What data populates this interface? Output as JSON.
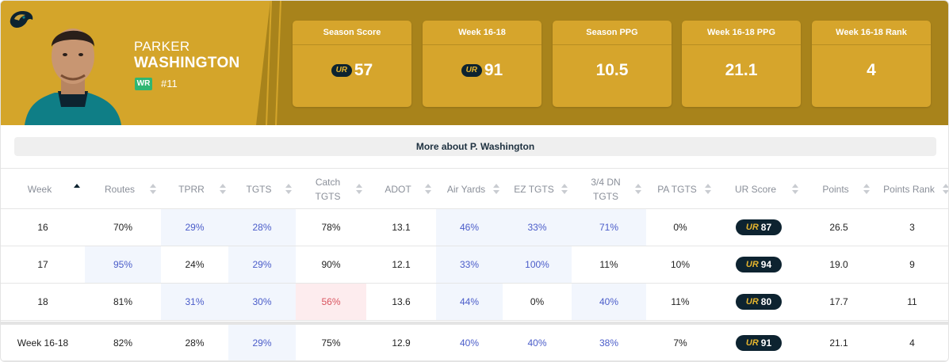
{
  "player": {
    "first_name": "PARKER",
    "last_name": "WASHINGTON",
    "position": "WR",
    "number": "#11"
  },
  "stats": [
    {
      "label": "Season Score",
      "value": "57",
      "has_logo": true
    },
    {
      "label": "Week 16-18",
      "value": "91",
      "has_logo": true
    },
    {
      "label": "Season PPG",
      "value": "10.5",
      "has_logo": false
    },
    {
      "label": "Week 16-18 PPG",
      "value": "21.1",
      "has_logo": false
    },
    {
      "label": "Week 16-18 Rank",
      "value": "4",
      "has_logo": false
    }
  ],
  "ur_logo_text": "UR",
  "more_about": "More about P. Washington",
  "table": {
    "headers": [
      "Week",
      "Routes",
      "TPRR",
      "TGTS",
      "Catch TGTS",
      "ADOT",
      "Air Yards",
      "EZ TGTS",
      "3/4 DN TGTS",
      "PA TGTS",
      "UR Score",
      "Points",
      "Points Rank"
    ],
    "rows": [
      {
        "cells": [
          "16",
          "70%",
          "29%",
          "28%",
          "78%",
          "13.1",
          "46%",
          "33%",
          "71%",
          "0%",
          "87",
          "26.5",
          "3"
        ],
        "styles": [
          "",
          "",
          "hl",
          "hl",
          "",
          "",
          "hl",
          "hl",
          "hl",
          "",
          "",
          "",
          ""
        ]
      },
      {
        "cells": [
          "17",
          "95%",
          "24%",
          "29%",
          "90%",
          "12.1",
          "33%",
          "100%",
          "11%",
          "10%",
          "94",
          "19.0",
          "9"
        ],
        "styles": [
          "",
          "hl",
          "",
          "hl",
          "",
          "",
          "hl",
          "hl",
          "",
          "",
          "",
          "",
          ""
        ]
      },
      {
        "cells": [
          "18",
          "81%",
          "31%",
          "30%",
          "56%",
          "13.6",
          "44%",
          "0%",
          "40%",
          "11%",
          "80",
          "17.7",
          "11"
        ],
        "styles": [
          "",
          "",
          "hl",
          "hl",
          "bad",
          "",
          "hl",
          "",
          "hl",
          "",
          "",
          "",
          ""
        ]
      },
      {
        "cells": [
          "Week 16-18",
          "82%",
          "28%",
          "29%",
          "75%",
          "12.9",
          "40%",
          "40%",
          "38%",
          "7%",
          "91",
          "21.1",
          "4"
        ],
        "styles": [
          "",
          "",
          "",
          "hl",
          "",
          "",
          "blue",
          "blue",
          "blue",
          "",
          "",
          "",
          ""
        ]
      }
    ]
  },
  "colors": {
    "header_dark": "#a8831b",
    "header_light": "#d4a52a",
    "navy": "#0d2330",
    "highlight_bg": "#f2f6fd",
    "highlight_text": "#4a5cc9",
    "bad_bg": "#fdecee",
    "bad_text": "#d9545f",
    "position_badge": "#2fb672"
  },
  "icons": [
    "jaguars-logo-icon",
    "player-headshot",
    "ur-logo-icon",
    "sort-icon"
  ]
}
